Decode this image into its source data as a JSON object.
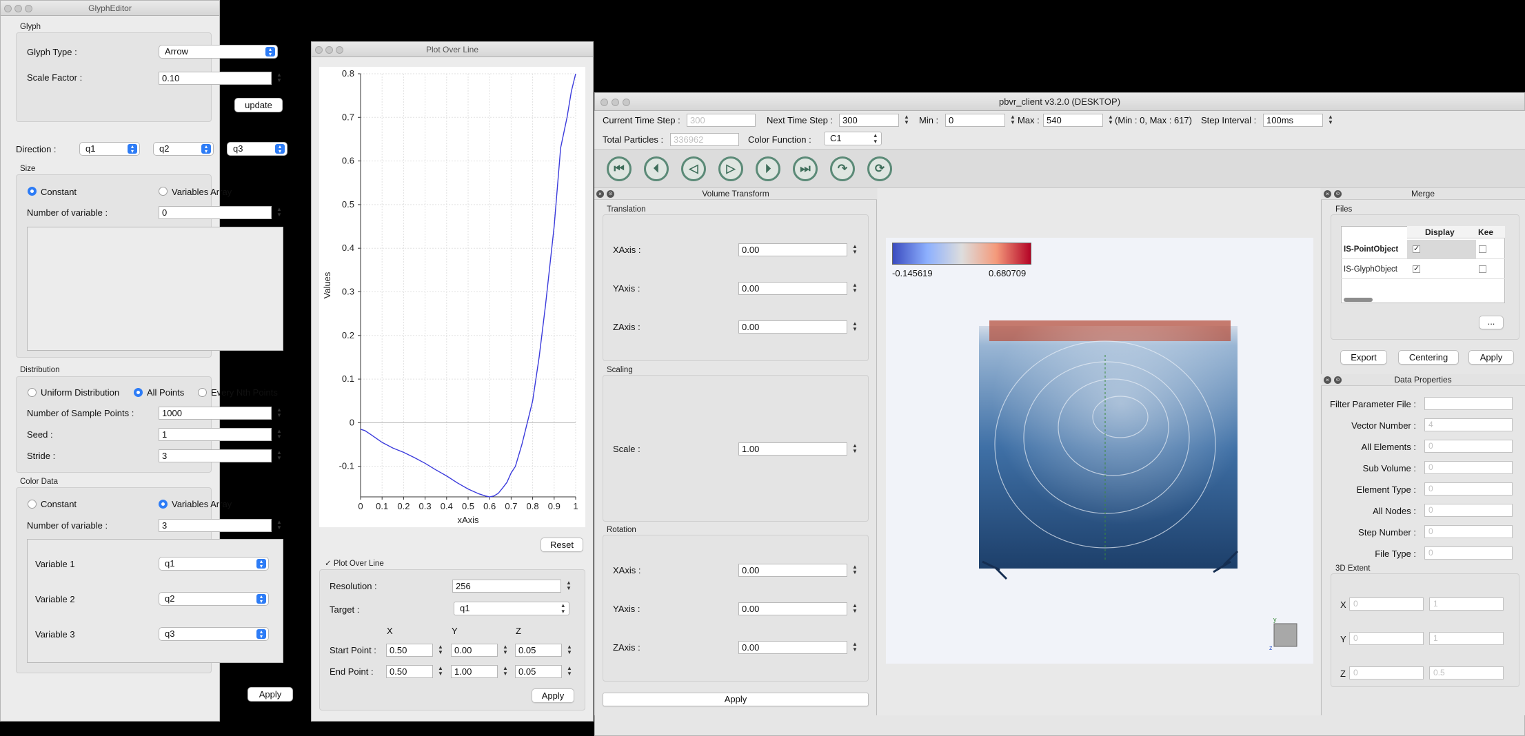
{
  "glyph_editor": {
    "title": "GlyphEditor",
    "glyph_group": "Glyph",
    "glyph_type_label": "Glyph Type :",
    "glyph_type_value": "Arrow",
    "scale_factor_label": "Scale Factor :",
    "scale_factor_value": "0.10",
    "update_button": "update",
    "direction_label": "Direction :",
    "direction_values": [
      "q1",
      "q2",
      "q3"
    ],
    "size_group": "Size",
    "size_constant": "Constant",
    "size_variables_array": "Variables Array",
    "size_num_var_label": "Number of variable :",
    "size_num_var_value": "0",
    "distribution_group": "Distribution",
    "dist_uniform": "Uniform Distribution",
    "dist_all": "All Points",
    "dist_every": "Every Nth Points",
    "num_sample_label": "Number of Sample Points :",
    "num_sample_value": "1000",
    "seed_label": "Seed :",
    "seed_value": "1",
    "stride_label": "Stride :",
    "stride_value": "3",
    "color_group": "Color Data",
    "color_constant": "Constant",
    "color_variables_array": "Variables Array",
    "color_num_var_label": "Number of variable :",
    "color_num_var_value": "3",
    "variables": [
      {
        "label": "Variable 1",
        "value": "q1"
      },
      {
        "label": "Variable 2",
        "value": "q2"
      },
      {
        "label": "Variable 3",
        "value": "q3"
      }
    ],
    "apply_button": "Apply"
  },
  "plot": {
    "title": "Plot Over Line",
    "reset_button": "Reset",
    "section_label": "Plot Over Line",
    "resolution_label": "Resolution :",
    "resolution_value": "256",
    "target_label": "Target :",
    "target_value": "q1",
    "col_x": "X",
    "col_y": "Y",
    "col_z": "Z",
    "start_label": "Start Point :",
    "start": [
      "0.50",
      "0.00",
      "0.05"
    ],
    "end_label": "End Point :",
    "end": [
      "0.50",
      "1.00",
      "0.05"
    ],
    "apply_button": "Apply"
  },
  "chart_data": {
    "type": "line",
    "xlabel": "xAxis",
    "ylabel": "Values",
    "xlim": [
      0,
      1
    ],
    "ylim": [
      -0.17,
      0.8
    ],
    "x_ticks": [
      "0",
      "0.1",
      "0.2",
      "0.3",
      "0.4",
      "0.5",
      "0.6",
      "0.7",
      "0.8",
      "0.9",
      "1"
    ],
    "y_ticks": [
      "-0.1",
      "0",
      "0.1",
      "0.2",
      "0.3",
      "0.4",
      "0.5",
      "0.6",
      "0.7",
      "0.8"
    ],
    "grid": true,
    "series": [
      {
        "color": "#3b3bdc",
        "x": [
          0,
          0.02,
          0.05,
          0.1,
          0.15,
          0.2,
          0.25,
          0.3,
          0.35,
          0.4,
          0.45,
          0.5,
          0.55,
          0.58,
          0.6,
          0.62,
          0.64,
          0.66,
          0.68,
          0.7,
          0.72,
          0.75,
          0.78,
          0.8,
          0.83,
          0.86,
          0.9,
          0.93,
          0.96,
          0.98,
          1.0
        ],
        "y": [
          -0.015,
          -0.018,
          -0.028,
          -0.045,
          -0.058,
          -0.068,
          -0.08,
          -0.093,
          -0.108,
          -0.122,
          -0.138,
          -0.152,
          -0.163,
          -0.168,
          -0.17,
          -0.168,
          -0.162,
          -0.15,
          -0.137,
          -0.115,
          -0.1,
          -0.05,
          0.01,
          0.05,
          0.15,
          0.27,
          0.45,
          0.63,
          0.7,
          0.76,
          0.8
        ]
      }
    ]
  },
  "pbvr": {
    "title": "pbvr_client v3.2.0 (DESKTOP)",
    "current_step_label": "Current Time Step :",
    "current_step_value": "300",
    "next_step_label": "Next Time Step :",
    "next_step_value": "300",
    "min_label": "Min :",
    "min_value": "0",
    "max_label": "Max :",
    "max_value": "540",
    "range_text": "(Min : 0, Max : 617)",
    "step_interval_label": "Step Interval :",
    "step_interval_value": "100ms",
    "total_particles_label": "Total Particles :",
    "total_particles_value": "336962",
    "color_function_label": "Color Function :",
    "color_function_value": "C1",
    "volume_transform": {
      "title": "Volume Transform",
      "translation": "Translation",
      "scaling": "Scaling",
      "rotation": "Rotation",
      "xaxis": "XAxis :",
      "yaxis": "YAxis :",
      "zaxis": "ZAxis :",
      "scale": "Scale :",
      "t": [
        "0.00",
        "0.00",
        "0.00"
      ],
      "s": "1.00",
      "r": [
        "0.00",
        "0.00",
        "0.00"
      ],
      "apply": "Apply"
    },
    "colorbar": {
      "min": "-0.145619",
      "max": "0.680709"
    },
    "merge": {
      "title": "Merge",
      "files": "Files",
      "col_display": "Display",
      "col_keep": "Kee",
      "rows": [
        {
          "name": "IS-PointObject",
          "display": true,
          "keep": false
        },
        {
          "name": "IS-GlyphObject",
          "display": true,
          "keep": false
        }
      ],
      "more": "...",
      "export": "Export",
      "centering": "Centering",
      "apply": "Apply"
    },
    "data_props": {
      "title": "Data Properties",
      "fields": [
        {
          "label": "Filter Parameter File :",
          "value": ""
        },
        {
          "label": "Vector Number :",
          "value": "4"
        },
        {
          "label": "All Elements :",
          "value": "0"
        },
        {
          "label": "Sub Volume :",
          "value": "0"
        },
        {
          "label": "Element Type :",
          "value": "0"
        },
        {
          "label": "All Nodes :",
          "value": "0"
        },
        {
          "label": "Step Number :",
          "value": "0"
        },
        {
          "label": "File Type :",
          "value": "0"
        }
      ],
      "extent_label": "3D Extent",
      "extent": [
        {
          "axis": "X",
          "a": "0",
          "b": "1"
        },
        {
          "axis": "Y",
          "a": "0",
          "b": "1"
        },
        {
          "axis": "Z",
          "a": "0",
          "b": "0.5"
        }
      ]
    }
  }
}
